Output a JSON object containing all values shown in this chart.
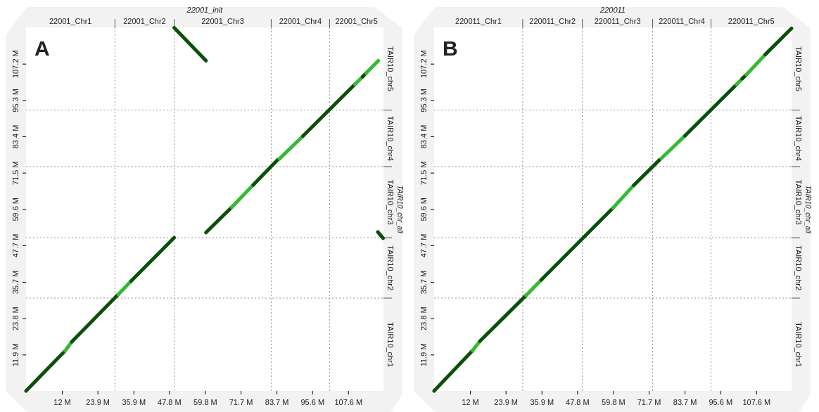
{
  "chart_data": [
    {
      "type": "line",
      "x2label": "22001_init",
      "y2label": "TAIR10_chr_all",
      "line_style": "solid",
      "marker": "none",
      "xlim": [
        0,
        119.4
      ],
      "ylim": [
        0,
        119.1
      ],
      "xticks": [
        {
          "value": 12,
          "label": "12 M"
        },
        {
          "value": 23.9,
          "label": "23.9 M"
        },
        {
          "value": 35.9,
          "label": "35.9 M"
        },
        {
          "value": 47.8,
          "label": "47.8 M"
        },
        {
          "value": 59.8,
          "label": "59.8 M"
        },
        {
          "value": 71.7,
          "label": "71.7 M"
        },
        {
          "value": 83.7,
          "label": "83.7 M"
        },
        {
          "value": 95.6,
          "label": "95.6 M"
        },
        {
          "value": 107.6,
          "label": "107.6 M"
        }
      ],
      "yticks": [
        {
          "value": 11.9,
          "label": "11.9 M"
        },
        {
          "value": 23.8,
          "label": "23.8 M"
        },
        {
          "value": 35.7,
          "label": "35.7 M"
        },
        {
          "value": 47.7,
          "label": "47.7 M"
        },
        {
          "value": 59.6,
          "label": "59.6 M"
        },
        {
          "value": 71.5,
          "label": "71.5 M"
        },
        {
          "value": 83.4,
          "label": "83.4 M"
        },
        {
          "value": 95.3,
          "label": "95.3 M"
        },
        {
          "value": 107.2,
          "label": "107.2 M"
        }
      ],
      "annotations": [
        "A",
        "22001_Chr1",
        "22001_Chr2",
        "22001_Chr3",
        "22001_Chr4",
        "22001_Chr5",
        "TAIR10_chr1",
        "TAIR10_chr2",
        "TAIR10_chr3",
        "TAIR10_chr4",
        "TAIR10_chr5"
      ],
      "ref_lines": [
        {
          "axis": "x",
          "value": 29.7,
          "line_style": "dotted"
        },
        {
          "axis": "x",
          "value": 49.5,
          "line_style": "dotted"
        },
        {
          "axis": "x",
          "value": 81.9,
          "line_style": "dotted"
        },
        {
          "axis": "x",
          "value": 101.4,
          "line_style": "dotted"
        },
        {
          "axis": "y",
          "value": 30.4,
          "line_style": "dotted"
        },
        {
          "axis": "y",
          "value": 50.2,
          "line_style": "dotted"
        },
        {
          "axis": "y",
          "value": 73.5,
          "line_style": "dotted"
        },
        {
          "axis": "y",
          "value": 92.0,
          "line_style": "dotted"
        }
      ],
      "series": [
        {
          "color": "#0b4f0b",
          "x": [
            0,
            13.0
          ],
          "values": [
            0,
            13.1
          ]
        },
        {
          "color": "#33bb33",
          "x": [
            13.0,
            15.3
          ],
          "values": [
            13.1,
            16.1
          ]
        },
        {
          "color": "#0b4f0b",
          "x": [
            15.3,
            30.8
          ],
          "values": [
            16.1,
            31.6
          ]
        },
        {
          "color": "#33bb33",
          "x": [
            30.8,
            35.1
          ],
          "values": [
            31.6,
            36.0
          ]
        },
        {
          "color": "#0b4f0b",
          "x": [
            35.1,
            49.5
          ],
          "values": [
            36.0,
            50.2
          ]
        },
        {
          "color": "#0b4f0b",
          "x": [
            60.1,
            68.7
          ],
          "values": [
            51.9,
            60.2
          ]
        },
        {
          "color": "#33bb33",
          "x": [
            68.7,
            75.9
          ],
          "values": [
            60.2,
            67.5
          ]
        },
        {
          "color": "#0b4f0b",
          "x": [
            75.9,
            84.0
          ],
          "values": [
            67.5,
            75.7
          ]
        },
        {
          "color": "#33bb33",
          "x": [
            84.6,
            92.5
          ],
          "values": [
            76.0,
            83.5
          ]
        },
        {
          "color": "#0b4f0b",
          "x": [
            92.5,
            109.9
          ],
          "values": [
            83.5,
            100.5
          ]
        },
        {
          "color": "#33bb33",
          "x": [
            109.9,
            112.4
          ],
          "values": [
            100.5,
            102.9
          ]
        },
        {
          "color": "#0b4f0b",
          "x": [
            112.4,
            113.6
          ],
          "values": [
            102.9,
            104.1
          ]
        },
        {
          "color": "#33bb33",
          "x": [
            113.6,
            117.7
          ],
          "values": [
            104.1,
            108.2
          ]
        },
        {
          "color": "#0b4f0b",
          "x": [
            49.5,
            60.1
          ],
          "values": [
            119.0,
            108.2
          ]
        },
        {
          "color": "#0b4f0b",
          "x": [
            117.5,
            119.3
          ],
          "values": [
            52.1,
            50.0
          ]
        }
      ]
    },
    {
      "type": "line",
      "x2label": "220011",
      "y2label": "TAIR10_chr_all",
      "line_style": "solid",
      "marker": "none",
      "xlim": [
        0,
        119.4
      ],
      "ylim": [
        0,
        119.1
      ],
      "xticks": [
        {
          "value": 12,
          "label": "12 M"
        },
        {
          "value": 23.9,
          "label": "23.9 M"
        },
        {
          "value": 35.9,
          "label": "35.9 M"
        },
        {
          "value": 47.8,
          "label": "47.8 M"
        },
        {
          "value": 59.8,
          "label": "59.8 M"
        },
        {
          "value": 71.7,
          "label": "71.7 M"
        },
        {
          "value": 83.7,
          "label": "83.7 M"
        },
        {
          "value": 95.6,
          "label": "95.6 M"
        },
        {
          "value": 107.6,
          "label": "107.6 M"
        }
      ],
      "yticks": [
        {
          "value": 11.9,
          "label": "11.9 M"
        },
        {
          "value": 23.8,
          "label": "23.8 M"
        },
        {
          "value": 35.7,
          "label": "35.7 M"
        },
        {
          "value": 47.7,
          "label": "47.7 M"
        },
        {
          "value": 59.6,
          "label": "59.6 M"
        },
        {
          "value": 71.5,
          "label": "71.5 M"
        },
        {
          "value": 83.4,
          "label": "83.4 M"
        },
        {
          "value": 95.3,
          "label": "95.3 M"
        },
        {
          "value": 107.2,
          "label": "107.2 M"
        }
      ],
      "annotations": [
        "B",
        "220011_Chr1",
        "220011_Chr2",
        "220011_Chr3",
        "220011_Chr4",
        "220011_Chr5",
        "TAIR10_chr1",
        "TAIR10_chr2",
        "TAIR10_chr3",
        "TAIR10_chr4",
        "TAIR10_chr5"
      ],
      "ref_lines": [
        {
          "axis": "x",
          "value": 29.6,
          "line_style": "dotted"
        },
        {
          "axis": "x",
          "value": 49.5,
          "line_style": "dotted"
        },
        {
          "axis": "x",
          "value": 73.0,
          "line_style": "dotted"
        },
        {
          "axis": "x",
          "value": 92.5,
          "line_style": "dotted"
        },
        {
          "axis": "y",
          "value": 30.4,
          "line_style": "dotted"
        },
        {
          "axis": "y",
          "value": 50.2,
          "line_style": "dotted"
        },
        {
          "axis": "y",
          "value": 73.5,
          "line_style": "dotted"
        },
        {
          "axis": "y",
          "value": 92.0,
          "line_style": "dotted"
        }
      ],
      "series": [
        {
          "color": "#0b4f0b",
          "x": [
            0,
            12.8
          ],
          "values": [
            0,
            13.2
          ]
        },
        {
          "color": "#33bb33",
          "x": [
            12.8,
            15.3
          ],
          "values": [
            13.2,
            16.3
          ]
        },
        {
          "color": "#0b4f0b",
          "x": [
            15.3,
            30.7
          ],
          "values": [
            16.3,
            31.3
          ]
        },
        {
          "color": "#33bb33",
          "x": [
            30.7,
            35.8
          ],
          "values": [
            31.3,
            36.4
          ]
        },
        {
          "color": "#0b4f0b",
          "x": [
            35.8,
            59.7
          ],
          "values": [
            36.4,
            59.9
          ]
        },
        {
          "color": "#33bb33",
          "x": [
            59.7,
            66.7
          ],
          "values": [
            59.9,
            67.4
          ]
        },
        {
          "color": "#0b4f0b",
          "x": [
            66.7,
            75.3
          ],
          "values": [
            67.4,
            75.7
          ]
        },
        {
          "color": "#33bb33",
          "x": [
            75.9,
            83.8
          ],
          "values": [
            76.2,
            83.6
          ]
        },
        {
          "color": "#0b4f0b",
          "x": [
            83.8,
            101.0
          ],
          "values": [
            83.6,
            100.4
          ]
        },
        {
          "color": "#33bb33",
          "x": [
            101.0,
            102.9
          ],
          "values": [
            100.4,
            102.3
          ]
        },
        {
          "color": "#0b4f0b",
          "x": [
            102.9,
            104.3
          ],
          "values": [
            102.3,
            103.6
          ]
        },
        {
          "color": "#33bb33",
          "x": [
            104.3,
            110.6
          ],
          "values": [
            103.6,
            110.2
          ]
        },
        {
          "color": "#0b4f0b",
          "x": [
            110.6,
            119.4
          ],
          "values": [
            110.2,
            118.8
          ]
        }
      ]
    }
  ]
}
